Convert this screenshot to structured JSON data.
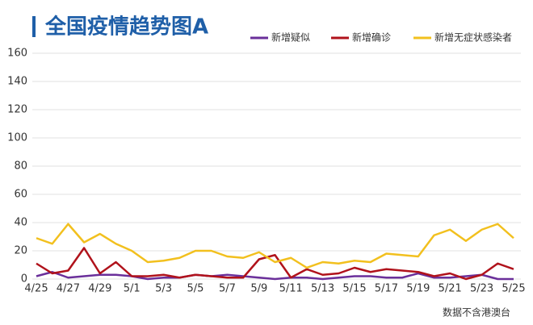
{
  "chart_data": {
    "type": "line",
    "title": "全国疫情趋势图A",
    "note": "数据不含港澳台",
    "categories": [
      "4/25",
      null,
      "4/27",
      null,
      "4/29",
      null,
      "5/1",
      null,
      "5/3",
      null,
      "5/5",
      null,
      "5/7",
      null,
      "5/9",
      null,
      "5/11",
      null,
      "5/13",
      null,
      "5/15",
      null,
      "5/17",
      null,
      "5/19",
      null,
      "5/21",
      null,
      "5/23",
      null,
      "5/25"
    ],
    "series": [
      {
        "name": "新增疑似",
        "color": "#6a2f9a",
        "values": [
          2,
          5,
          1,
          2,
          3,
          3,
          2,
          0,
          1,
          1,
          3,
          2,
          3,
          2,
          1,
          0,
          1,
          1,
          0,
          1,
          2,
          2,
          1,
          1,
          4,
          1,
          1,
          2,
          3,
          0,
          0
        ]
      },
      {
        "name": "新增确诊",
        "color": "#b0121b",
        "values": [
          11,
          4,
          6,
          22,
          4,
          12,
          2,
          2,
          3,
          1,
          3,
          2,
          1,
          1,
          14,
          17,
          1,
          7,
          3,
          4,
          8,
          5,
          7,
          6,
          5,
          2,
          4,
          0,
          3,
          11,
          7
        ]
      },
      {
        "name": "新增无症状感染者",
        "color": "#f2c01e",
        "values": [
          29,
          25,
          39,
          26,
          32,
          25,
          20,
          12,
          13,
          15,
          20,
          20,
          16,
          15,
          19,
          12,
          15,
          8,
          12,
          11,
          13,
          12,
          18,
          17,
          16,
          31,
          35,
          27,
          35,
          39,
          29
        ]
      }
    ],
    "ylim": [
      0,
      160
    ],
    "yticks": [
      0,
      20,
      40,
      60,
      80,
      100,
      120,
      140,
      160
    ],
    "grid": true
  }
}
